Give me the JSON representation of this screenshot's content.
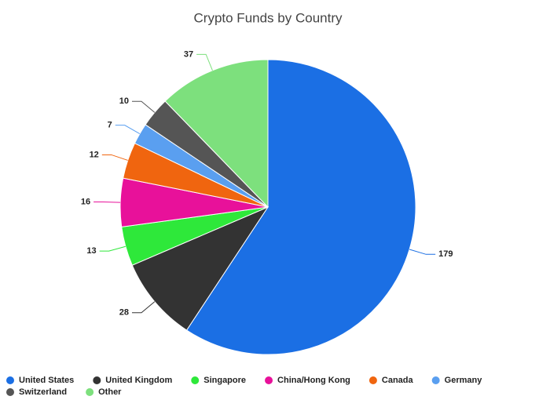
{
  "chart_data": {
    "type": "pie",
    "title": "Crypto Funds by Country",
    "categories": [
      "United States",
      "United Kingdom",
      "Singapore",
      "China/Hong Kong",
      "Canada",
      "Germany",
      "Switzerland",
      "Other"
    ],
    "values": [
      179,
      28,
      13,
      16,
      12,
      7,
      10,
      37
    ],
    "colors": [
      "#1b6fe4",
      "#333333",
      "#2ee83a",
      "#e8119a",
      "#f0650f",
      "#5a9ff0",
      "#555555",
      "#7de07d"
    ]
  }
}
